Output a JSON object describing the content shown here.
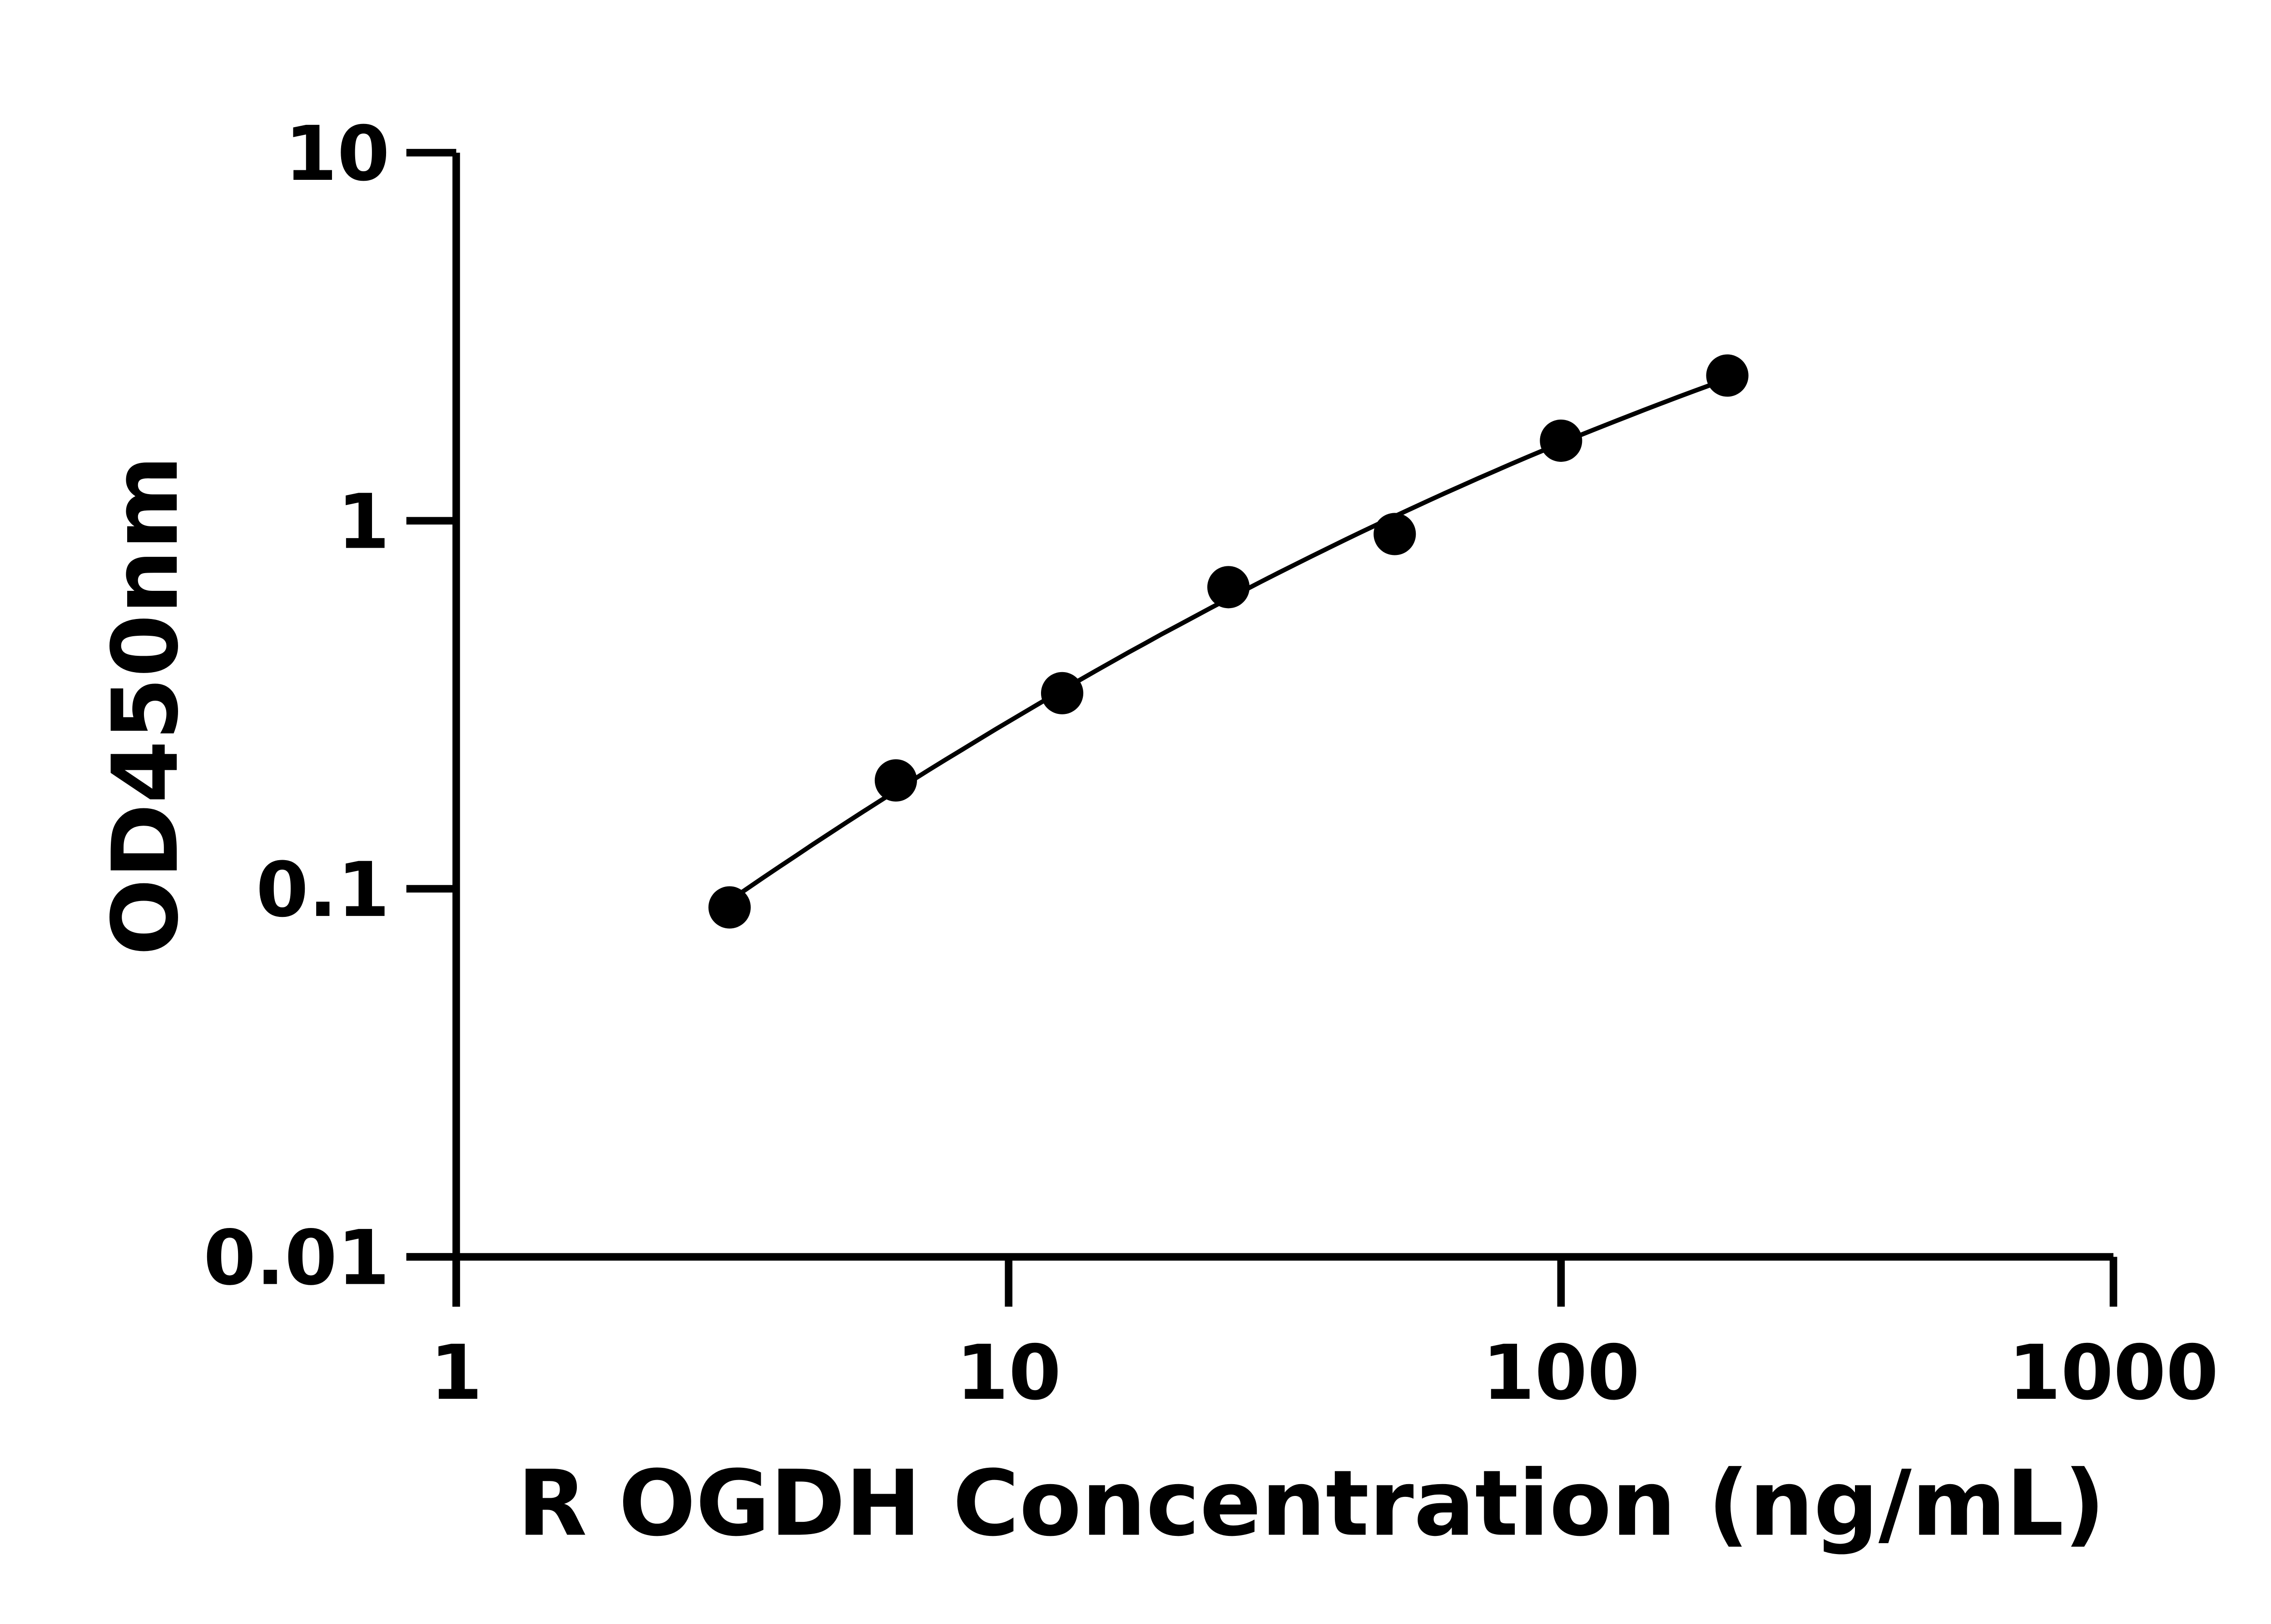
{
  "chart_data": {
    "type": "scatter",
    "title": "",
    "xlabel": "R OGDH Concentration (ng/mL)",
    "ylabel": "OD450nm",
    "x_scale": "log",
    "y_scale": "log",
    "xlim": [
      1,
      1000
    ],
    "ylim": [
      0.01,
      10
    ],
    "x_ticks": [
      1,
      10,
      100,
      1000
    ],
    "x_tick_labels": [
      "1",
      "10",
      "100",
      "1000"
    ],
    "y_ticks": [
      0.01,
      0.1,
      1,
      10
    ],
    "y_tick_labels": [
      "0.01",
      "0.1",
      "1",
      "10"
    ],
    "grid": false,
    "legend": "none",
    "color": "#000000",
    "series": [
      {
        "x": [
          3.125,
          6.25,
          12.5,
          25,
          50,
          100,
          200
        ],
        "y": [
          0.089,
          0.197,
          0.34,
          0.66,
          0.92,
          1.65,
          2.48
        ],
        "fit_line": true
      }
    ]
  }
}
